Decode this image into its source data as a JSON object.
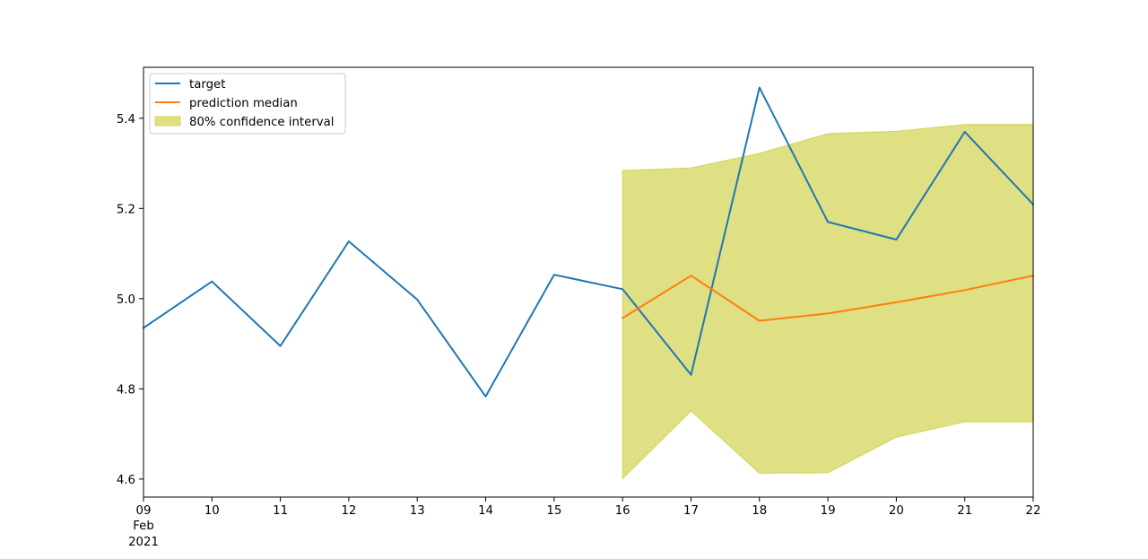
{
  "chart_data": {
    "type": "line",
    "title": "",
    "xlabel": "",
    "ylabel": "",
    "x_tick_labels": [
      "09",
      "10",
      "11",
      "12",
      "13",
      "14",
      "15",
      "16",
      "17",
      "18",
      "19",
      "20",
      "21",
      "22"
    ],
    "x_tick_sublabels": [
      "Feb",
      "2021"
    ],
    "y_tick_labels": [
      "4.6",
      "4.8",
      "5.0",
      "5.2",
      "5.4"
    ],
    "y_ticks": [
      4.6,
      4.8,
      5.0,
      5.2,
      5.4
    ],
    "xlim": [
      "2021-02-09",
      "2021-02-22"
    ],
    "ylim": [
      4.56,
      5.513
    ],
    "legend_position": "top-left",
    "grid": false,
    "series": [
      {
        "name": "target",
        "kind": "line",
        "color": "#1f77b4",
        "x": [
          "2021-02-09",
          "2021-02-10",
          "2021-02-11",
          "2021-02-12",
          "2021-02-13",
          "2021-02-14",
          "2021-02-15",
          "2021-02-16",
          "2021-02-17",
          "2021-02-18",
          "2021-02-19",
          "2021-02-20",
          "2021-02-21",
          "2021-02-22"
        ],
        "values": [
          4.935,
          5.038,
          4.895,
          5.127,
          4.998,
          4.783,
          5.053,
          5.021,
          4.831,
          5.468,
          5.17,
          5.131,
          5.37,
          5.209
        ]
      },
      {
        "name": "prediction median",
        "kind": "line",
        "color": "#ff7f0e",
        "x": [
          "2021-02-16",
          "2021-02-17",
          "2021-02-18",
          "2021-02-19",
          "2021-02-20",
          "2021-02-21",
          "2021-02-22"
        ],
        "values": [
          4.957,
          5.051,
          4.951,
          4.967,
          4.992,
          5.019,
          5.051
        ]
      },
      {
        "name": "80% confidence interval",
        "kind": "band",
        "color": "#d4d45a",
        "x": [
          "2021-02-16",
          "2021-02-17",
          "2021-02-18",
          "2021-02-19",
          "2021-02-20",
          "2021-02-21",
          "2021-02-22"
        ],
        "lower": [
          4.601,
          4.751,
          4.613,
          4.614,
          4.693,
          4.727,
          4.727
        ],
        "upper": [
          5.284,
          5.29,
          5.322,
          5.366,
          5.371,
          5.386,
          5.386
        ]
      }
    ]
  }
}
